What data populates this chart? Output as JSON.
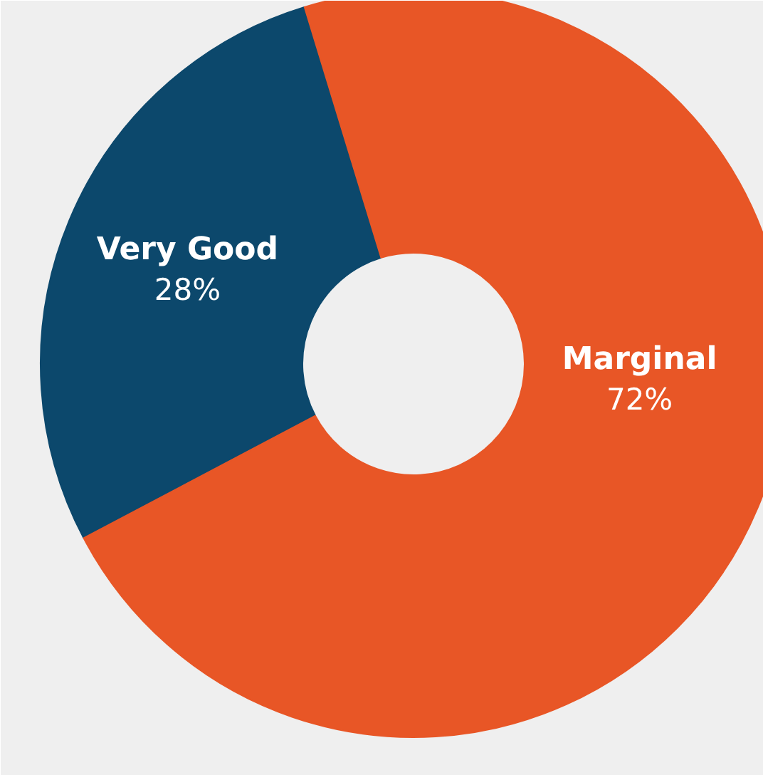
{
  "chart_data": {
    "type": "donut",
    "categories": [
      "Very Good",
      "Marginal"
    ],
    "values": [
      28,
      72
    ],
    "colors": [
      "#0c486c",
      "#e85626"
    ],
    "value_labels": [
      "28%",
      "72%"
    ]
  }
}
